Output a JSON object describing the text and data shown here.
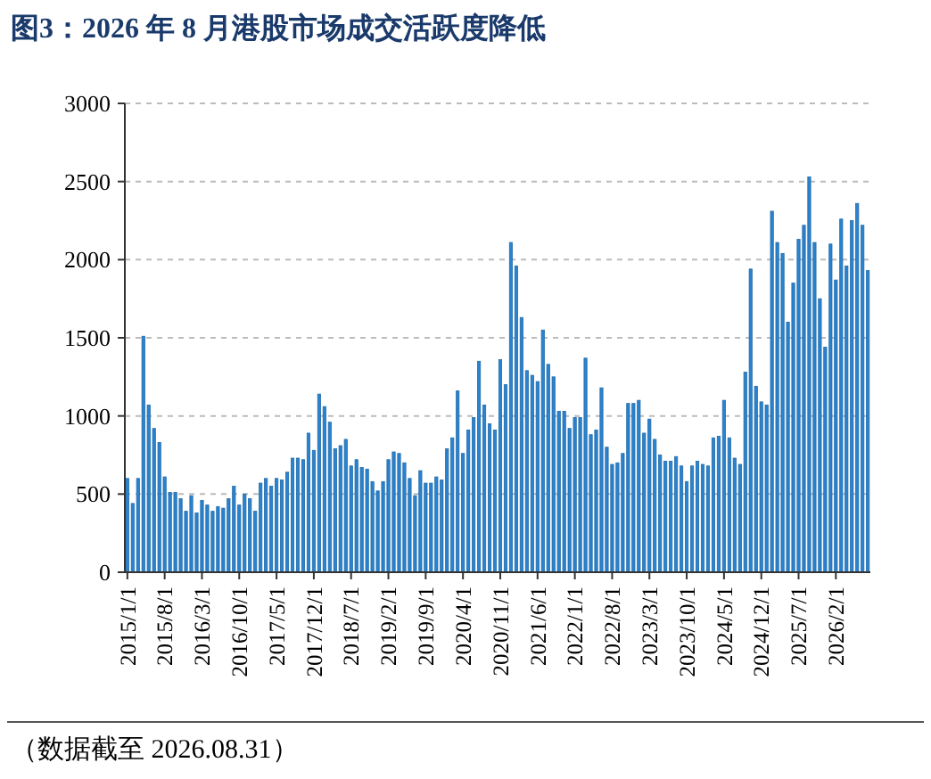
{
  "chart_data": {
    "type": "bar",
    "title": "图3：2026 年 8 月港股市场成交活跃度降低",
    "categories": [
      "2015/1/1",
      null,
      null,
      null,
      null,
      null,
      null,
      "2015/8/1",
      null,
      null,
      null,
      null,
      null,
      null,
      "2016/3/1",
      null,
      null,
      null,
      null,
      null,
      null,
      "2016/10/1",
      null,
      null,
      null,
      null,
      null,
      null,
      "2017/5/1",
      null,
      null,
      null,
      null,
      null,
      null,
      "2017/12/1",
      null,
      null,
      null,
      null,
      null,
      null,
      "2018/7/1",
      null,
      null,
      null,
      null,
      null,
      null,
      "2019/2/1",
      null,
      null,
      null,
      null,
      null,
      null,
      "2019/9/1",
      null,
      null,
      null,
      null,
      null,
      null,
      "2020/4/1",
      null,
      null,
      null,
      null,
      null,
      null,
      "2020/11/1",
      null,
      null,
      null,
      null,
      null,
      null,
      "2021/6/1",
      null,
      null,
      null,
      null,
      null,
      null,
      "2022/1/1",
      null,
      null,
      null,
      null,
      null,
      null,
      "2022/8/1",
      null,
      null,
      null,
      null,
      null,
      null,
      "2023/3/1",
      null,
      null,
      null,
      null,
      null,
      null,
      "2023/10/1",
      null,
      null,
      null,
      null,
      null,
      null,
      "2024/5/1",
      null,
      null,
      null,
      null,
      null,
      null,
      "2024/12/1",
      null,
      null,
      null,
      null,
      null,
      null,
      "2025/7/1",
      null,
      null,
      null,
      null,
      null,
      null,
      "2026/2/1",
      null,
      null,
      null,
      null,
      null,
      null
    ],
    "values": [
      600,
      440,
      600,
      1510,
      1070,
      920,
      830,
      610,
      510,
      510,
      470,
      390,
      490,
      380,
      460,
      430,
      390,
      420,
      410,
      470,
      550,
      430,
      500,
      470,
      390,
      570,
      600,
      550,
      600,
      590,
      640,
      730,
      730,
      720,
      890,
      780,
      1140,
      1060,
      960,
      790,
      810,
      850,
      680,
      720,
      670,
      660,
      580,
      520,
      580,
      720,
      770,
      760,
      700,
      600,
      490,
      650,
      570,
      570,
      610,
      590,
      790,
      860,
      1160,
      760,
      910,
      990,
      1350,
      1070,
      950,
      910,
      1360,
      1200,
      2110,
      1960,
      1630,
      1290,
      1260,
      1220,
      1550,
      1330,
      1250,
      1030,
      1030,
      920,
      990,
      990,
      1370,
      880,
      910,
      1180,
      800,
      690,
      700,
      760,
      1080,
      1080,
      1100,
      890,
      980,
      850,
      750,
      710,
      710,
      740,
      680,
      580,
      680,
      710,
      690,
      680,
      860,
      870,
      1100,
      860,
      730,
      690,
      1280,
      1940,
      1190,
      1090,
      1070,
      2310,
      2110,
      2040,
      1600,
      1850,
      2130,
      2220,
      2530,
      2110,
      1750,
      1440,
      2100,
      1870,
      2260,
      1960,
      2250,
      2360,
      2220,
      1930
    ],
    "color": "#2a83cf",
    "ylim": [
      0,
      3000
    ],
    "yticks": [
      0,
      500,
      1000,
      1500,
      2000,
      2500,
      3000
    ],
    "grid": "y",
    "annotations": [
      "（数据截至 2026.08.31）"
    ]
  }
}
